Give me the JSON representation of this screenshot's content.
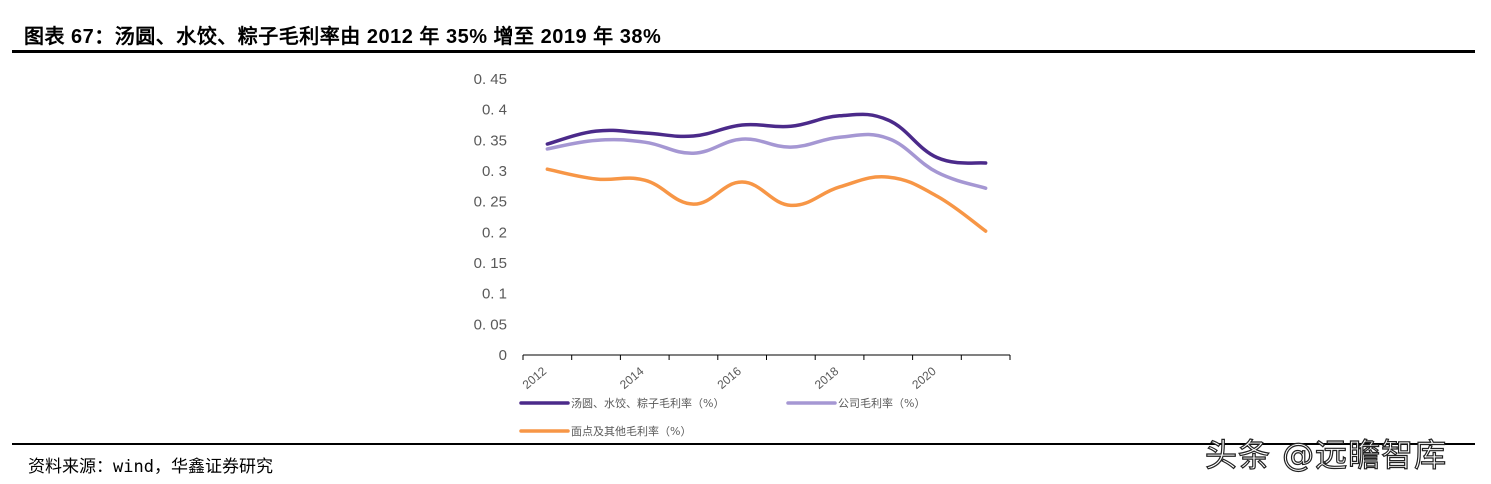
{
  "header": {
    "title": "图表 67：汤圆、水饺、粽子毛利率由 2012 年 35% 增至 2019 年 38%"
  },
  "footer": {
    "source": "资料来源：wind，华鑫证券研究",
    "watermark": "头条 @远瞻智库"
  },
  "chart_data": {
    "type": "line",
    "title": "",
    "xlabel": "",
    "ylabel": "",
    "categories": [
      "2012",
      "2013",
      "2014",
      "2015",
      "2016",
      "2017",
      "2018",
      "2019",
      "2020",
      "2021"
    ],
    "x_tick_labels": [
      "2012",
      "2014",
      "2016",
      "2018",
      "2020"
    ],
    "y_tick_labels": [
      "0",
      "0. 05",
      "0. 1",
      "0. 15",
      "0. 2",
      "0. 25",
      "0. 3",
      "0. 35",
      "0. 4",
      "0. 45"
    ],
    "y_ticks": [
      0,
      0.05,
      0.1,
      0.15,
      0.2,
      0.25,
      0.3,
      0.35,
      0.4,
      0.45
    ],
    "ylim": [
      0,
      0.45
    ],
    "grid": false,
    "smooth": true,
    "legend_position": "bottom",
    "series": [
      {
        "name": "汤圆、水饺、粽子毛利率（%）",
        "color": "#4b2a8a",
        "values": [
          0.344,
          0.365,
          0.362,
          0.357,
          0.375,
          0.373,
          0.39,
          0.383,
          0.322,
          0.313
        ]
      },
      {
        "name": "公司毛利率（%）",
        "color": "#a597d3",
        "values": [
          0.336,
          0.35,
          0.347,
          0.329,
          0.352,
          0.339,
          0.355,
          0.353,
          0.298,
          0.272
        ]
      },
      {
        "name": "面点及其他毛利率（%）",
        "color": "#f79646",
        "values": [
          0.303,
          0.287,
          0.285,
          0.246,
          0.282,
          0.244,
          0.274,
          0.29,
          0.259,
          0.202
        ]
      }
    ]
  }
}
